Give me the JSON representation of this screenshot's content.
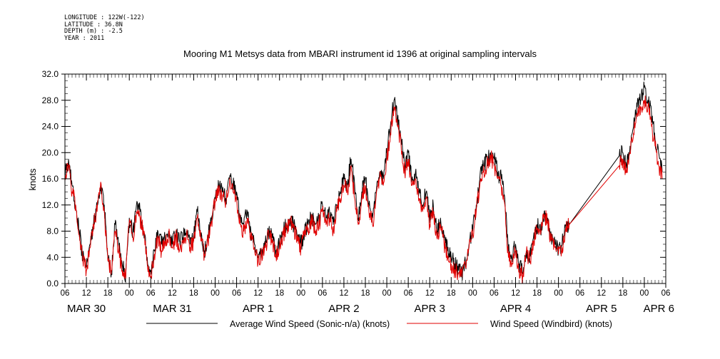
{
  "header": {
    "meta_lines": [
      "LONGITUDE : 122W(-122)",
      "LATITUDE : 36.8N",
      "DEPTH (m) : -2.5",
      "YEAR : 2011"
    ]
  },
  "chart_data": {
    "type": "line",
    "title": "Mooring M1 Metsys data from MBARI instrument id 1396 at original sampling intervals",
    "ylabel": "knots",
    "ylim": [
      0,
      32
    ],
    "yticks": [
      0,
      4,
      8,
      12,
      16,
      20,
      24,
      28,
      32
    ],
    "ytick_labels": [
      "0.0",
      "4.0",
      "8.0",
      "12.0",
      "16.0",
      "20.0",
      "24.0",
      "28.0",
      "32.0"
    ],
    "xlim_hours": [
      0,
      168
    ],
    "x_hour_labels": [
      "06",
      "12",
      "18",
      "00",
      "06",
      "12",
      "18",
      "00",
      "06",
      "12",
      "18",
      "00",
      "06",
      "12",
      "18",
      "00",
      "06",
      "12",
      "18",
      "00",
      "06",
      "12",
      "18",
      "00",
      "06",
      "12",
      "18",
      "00",
      "06"
    ],
    "x_day_labels": [
      "MAR 30",
      "MAR 31",
      "APR  1",
      "APR  2",
      "APR  3",
      "APR  4",
      "APR  5",
      "APR  6"
    ],
    "grid": false,
    "legend_position": "bottom",
    "colors": {
      "average": "#000000",
      "windbird": "#e00000"
    },
    "series": [
      {
        "name": "Average Wind Speed (Sonic-n/a) (knots)",
        "color": "#000000",
        "points": [
          [
            0,
            17
          ],
          [
            1,
            19
          ],
          [
            2,
            15
          ],
          [
            3,
            12
          ],
          [
            4,
            8
          ],
          [
            5,
            4
          ],
          [
            6,
            2.5
          ],
          [
            7,
            6
          ],
          [
            8,
            9
          ],
          [
            9,
            12
          ],
          [
            10,
            15
          ],
          [
            11,
            12
          ],
          [
            12,
            4
          ],
          [
            13,
            1.5
          ],
          [
            14,
            9
          ],
          [
            15,
            6
          ],
          [
            16,
            3
          ],
          [
            17,
            1
          ],
          [
            18,
            10
          ],
          [
            19,
            8
          ],
          [
            20,
            12
          ],
          [
            21,
            11
          ],
          [
            22,
            8
          ],
          [
            23,
            4
          ],
          [
            24,
            2
          ],
          [
            25,
            5
          ],
          [
            26,
            8
          ],
          [
            27,
            6
          ],
          [
            28,
            7
          ],
          [
            29,
            8
          ],
          [
            30,
            6
          ],
          [
            31,
            8
          ],
          [
            32,
            6.5
          ],
          [
            33,
            7
          ],
          [
            34,
            8
          ],
          [
            35,
            6
          ],
          [
            36,
            7
          ],
          [
            37,
            11
          ],
          [
            38,
            7
          ],
          [
            39,
            5
          ],
          [
            40,
            7
          ],
          [
            41,
            10
          ],
          [
            42,
            13
          ],
          [
            43,
            15
          ],
          [
            44,
            14
          ],
          [
            45,
            13
          ],
          [
            46,
            16
          ],
          [
            47,
            15
          ],
          [
            48,
            14
          ],
          [
            49,
            10
          ],
          [
            50,
            9
          ],
          [
            51,
            11
          ],
          [
            52,
            8
          ],
          [
            53,
            6
          ],
          [
            54,
            4
          ],
          [
            55,
            5
          ],
          [
            56,
            6
          ],
          [
            57,
            8
          ],
          [
            58,
            7
          ],
          [
            59,
            5
          ],
          [
            60,
            6
          ],
          [
            61,
            8
          ],
          [
            62,
            9
          ],
          [
            63,
            10
          ],
          [
            64,
            9
          ],
          [
            65,
            7
          ],
          [
            66,
            6
          ],
          [
            67,
            8
          ],
          [
            68,
            9
          ],
          [
            69,
            10
          ],
          [
            70,
            9
          ],
          [
            71,
            10
          ],
          [
            72,
            12
          ],
          [
            73,
            10
          ],
          [
            74,
            11
          ],
          [
            75,
            9
          ],
          [
            76,
            12
          ],
          [
            77,
            14
          ],
          [
            78,
            16
          ],
          [
            79,
            15
          ],
          [
            80,
            19
          ],
          [
            81,
            15
          ],
          [
            82,
            10
          ],
          [
            83,
            14
          ],
          [
            84,
            16
          ],
          [
            85,
            12
          ],
          [
            86,
            10
          ],
          [
            87,
            14
          ],
          [
            88,
            17
          ],
          [
            89,
            16
          ],
          [
            90,
            20
          ],
          [
            91,
            24
          ],
          [
            92,
            28
          ],
          [
            93,
            25
          ],
          [
            94,
            22
          ],
          [
            95,
            18
          ],
          [
            96,
            20
          ],
          [
            97,
            16
          ],
          [
            98,
            17
          ],
          [
            99,
            14
          ],
          [
            100,
            12
          ],
          [
            101,
            14
          ],
          [
            102,
            10
          ],
          [
            103,
            12
          ],
          [
            104,
            8
          ],
          [
            105,
            10
          ],
          [
            106,
            7
          ],
          [
            107,
            5
          ],
          [
            108,
            4
          ],
          [
            109,
            3
          ],
          [
            110,
            2
          ],
          [
            111,
            1.5
          ],
          [
            112,
            3
          ],
          [
            113,
            6
          ],
          [
            114,
            8
          ],
          [
            115,
            12
          ],
          [
            116,
            16
          ],
          [
            117,
            18
          ],
          [
            118,
            19
          ],
          [
            119,
            20
          ],
          [
            120,
            19
          ],
          [
            121,
            17
          ],
          [
            122,
            16
          ],
          [
            123,
            13
          ],
          [
            124,
            5
          ],
          [
            125,
            4
          ],
          [
            126,
            6
          ],
          [
            127,
            3
          ],
          [
            128,
            1.5
          ],
          [
            129,
            5
          ],
          [
            130,
            4
          ],
          [
            131,
            7
          ],
          [
            132,
            9
          ],
          [
            133,
            8
          ],
          [
            134,
            11
          ],
          [
            135,
            10
          ],
          [
            136,
            7
          ],
          [
            137,
            6
          ],
          [
            138,
            5
          ],
          [
            139,
            6
          ],
          [
            140,
            9
          ],
          [
            141,
            9
          ],
          [
            155,
            19.5
          ],
          [
            156,
            20
          ],
          [
            157,
            18
          ],
          [
            158,
            21
          ],
          [
            159,
            24
          ],
          [
            160,
            27
          ],
          [
            161,
            28
          ],
          [
            162,
            30
          ],
          [
            163,
            28
          ],
          [
            164,
            26
          ],
          [
            165,
            22
          ],
          [
            166,
            20
          ],
          [
            167,
            17
          ]
        ]
      },
      {
        "name": "Wind Speed (Windbird) (knots)",
        "color": "#e00000",
        "points": [
          [
            0,
            16
          ],
          [
            1,
            18
          ],
          [
            2,
            14
          ],
          [
            3,
            12
          ],
          [
            4,
            7.5
          ],
          [
            5,
            3.5
          ],
          [
            6,
            2
          ],
          [
            7,
            5.5
          ],
          [
            8,
            9
          ],
          [
            9,
            11
          ],
          [
            10,
            15.5
          ],
          [
            11,
            11
          ],
          [
            12,
            3.5
          ],
          [
            13,
            2
          ],
          [
            14,
            8
          ],
          [
            15,
            5
          ],
          [
            16,
            2
          ],
          [
            17,
            0.8
          ],
          [
            18,
            9.5
          ],
          [
            19,
            7
          ],
          [
            20,
            11
          ],
          [
            21,
            10
          ],
          [
            22,
            7.5
          ],
          [
            23,
            3
          ],
          [
            24,
            1
          ],
          [
            25,
            4.5
          ],
          [
            26,
            7
          ],
          [
            27,
            5
          ],
          [
            28,
            6.5
          ],
          [
            29,
            7.5
          ],
          [
            30,
            5.5
          ],
          [
            31,
            7.5
          ],
          [
            32,
            5
          ],
          [
            33,
            6.5
          ],
          [
            34,
            7.5
          ],
          [
            35,
            5.5
          ],
          [
            36,
            6.5
          ],
          [
            37,
            10
          ],
          [
            38,
            6.5
          ],
          [
            39,
            4.5
          ],
          [
            40,
            6.5
          ],
          [
            41,
            9.5
          ],
          [
            42,
            12.5
          ],
          [
            43,
            14
          ],
          [
            44,
            13
          ],
          [
            45,
            12.5
          ],
          [
            46,
            15
          ],
          [
            47,
            14
          ],
          [
            48,
            13
          ],
          [
            49,
            9
          ],
          [
            50,
            8
          ],
          [
            51,
            10
          ],
          [
            52,
            7.5
          ],
          [
            53,
            5.5
          ],
          [
            54,
            3
          ],
          [
            55,
            4.5
          ],
          [
            56,
            5.5
          ],
          [
            57,
            7.5
          ],
          [
            58,
            6.5
          ],
          [
            59,
            4.5
          ],
          [
            60,
            5.5
          ],
          [
            61,
            7.5
          ],
          [
            62,
            8.5
          ],
          [
            63,
            9.5
          ],
          [
            64,
            8.5
          ],
          [
            65,
            6.5
          ],
          [
            66,
            5.5
          ],
          [
            67,
            7.5
          ],
          [
            68,
            8.5
          ],
          [
            69,
            9.5
          ],
          [
            70,
            8
          ],
          [
            71,
            9
          ],
          [
            72,
            11
          ],
          [
            73,
            9
          ],
          [
            74,
            10
          ],
          [
            75,
            8
          ],
          [
            76,
            11
          ],
          [
            77,
            13
          ],
          [
            78,
            15
          ],
          [
            79,
            14
          ],
          [
            80,
            18
          ],
          [
            81,
            13
          ],
          [
            82,
            9
          ],
          [
            83,
            13
          ],
          [
            84,
            15
          ],
          [
            85,
            11
          ],
          [
            86,
            9
          ],
          [
            87,
            13
          ],
          [
            88,
            16
          ],
          [
            89,
            15
          ],
          [
            90,
            19
          ],
          [
            91,
            23
          ],
          [
            92,
            27
          ],
          [
            93,
            24
          ],
          [
            94,
            21
          ],
          [
            95,
            17
          ],
          [
            96,
            19
          ],
          [
            97,
            15
          ],
          [
            98,
            16
          ],
          [
            99,
            13
          ],
          [
            100,
            11
          ],
          [
            101,
            13
          ],
          [
            102,
            9
          ],
          [
            103,
            11
          ],
          [
            104,
            7
          ],
          [
            105,
            9
          ],
          [
            106,
            6
          ],
          [
            107,
            4
          ],
          [
            108,
            3
          ],
          [
            109,
            2
          ],
          [
            110,
            1.5
          ],
          [
            111,
            1
          ],
          [
            112,
            2.5
          ],
          [
            113,
            5.5
          ],
          [
            114,
            7.5
          ],
          [
            115,
            11
          ],
          [
            116,
            15
          ],
          [
            117,
            17
          ],
          [
            118,
            18
          ],
          [
            119,
            19.5
          ],
          [
            120,
            18
          ],
          [
            121,
            16
          ],
          [
            122,
            15
          ],
          [
            123,
            12
          ],
          [
            124,
            4
          ],
          [
            125,
            3
          ],
          [
            126,
            5
          ],
          [
            127,
            2
          ],
          [
            128,
            1
          ],
          [
            129,
            4.5
          ],
          [
            130,
            3.5
          ],
          [
            131,
            6.5
          ],
          [
            132,
            8.5
          ],
          [
            133,
            7.5
          ],
          [
            134,
            10.5
          ],
          [
            135,
            9.5
          ],
          [
            136,
            6.5
          ],
          [
            137,
            5.5
          ],
          [
            138,
            4.5
          ],
          [
            139,
            5.5
          ],
          [
            140,
            8.5
          ],
          [
            141,
            9
          ],
          [
            155,
            18
          ],
          [
            156,
            19
          ],
          [
            157,
            17
          ],
          [
            158,
            20
          ],
          [
            159,
            23
          ],
          [
            160,
            26
          ],
          [
            161,
            27
          ],
          [
            162,
            28
          ],
          [
            163,
            27
          ],
          [
            164,
            24
          ],
          [
            165,
            21
          ],
          [
            166,
            18
          ],
          [
            167,
            16
          ]
        ]
      }
    ]
  }
}
